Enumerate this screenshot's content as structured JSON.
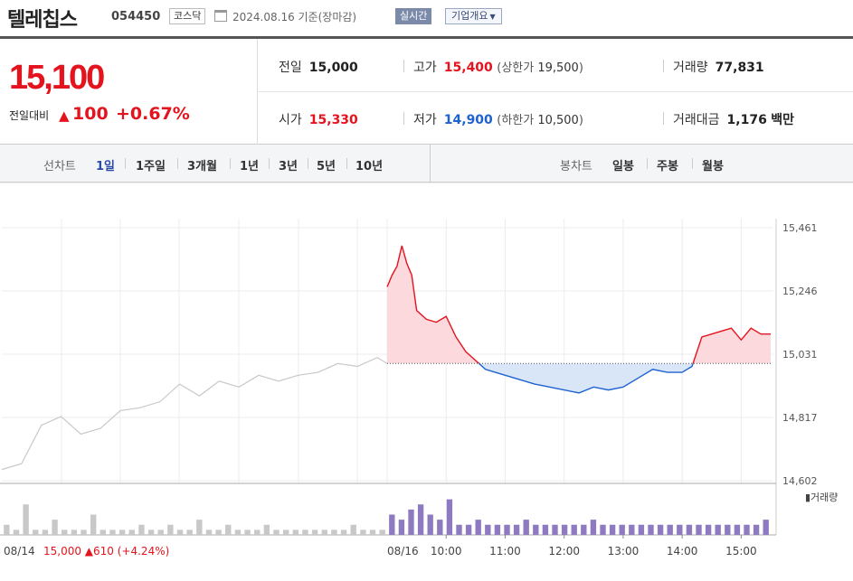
{
  "header": {
    "name": "텔레칩스",
    "code": "054450",
    "market": "코스닥",
    "date": "2024.08.16 기준(장마감)",
    "realtime": "실시간",
    "overview": "기업개요"
  },
  "price": {
    "current": "15,100",
    "change_label": "전일대비",
    "change_arrow": "▲",
    "change": "100",
    "change_pct": "+0.67%"
  },
  "stats": {
    "prev_label": "전일",
    "prev": "15,000",
    "high_label": "고가",
    "high": "15,400",
    "upper_label": "(상한가",
    "upper": "19,500",
    "upper_close": ")",
    "volume_label": "거래량",
    "volume": "77,831",
    "open_label": "시가",
    "open": "15,330",
    "low_label": "저가",
    "low": "14,900",
    "lower_label": "(하한가",
    "lower": "10,500",
    "lower_close": ")",
    "amount_label": "거래대금",
    "amount": "1,176",
    "amount_unit": "백만"
  },
  "period": {
    "line_label": "선차트",
    "line_items": [
      "1일",
      "1주일",
      "3개월",
      "1년",
      "3년",
      "5년",
      "10년"
    ],
    "candle_label": "봉차트",
    "candle_items": [
      "일봉",
      "주봉",
      "월봉"
    ]
  },
  "colors": {
    "up": "#e4141e",
    "down": "#1e62d0",
    "prev_day_line": "#c8c8c8",
    "volume": "#8e7ac0"
  },
  "chart_data": {
    "type": "line",
    "y_ticks": [
      "15,461",
      "15,246",
      "15,031",
      "14,817",
      "14,602"
    ],
    "ylim": [
      14602,
      15461
    ],
    "base_price": 15000,
    "x_tick_labels": [
      "08/14",
      "08/16",
      "10:00",
      "11:00",
      "12:00",
      "13:00",
      "14:00",
      "15:00"
    ],
    "prev_day_summary": {
      "date": "08/14",
      "close": "15,000",
      "arrow": "▲",
      "change": "610",
      "pct": "(+4.24%)"
    },
    "volume_legend": "거래량",
    "grid": true,
    "series": [
      {
        "name": "",
        "day": "08/14",
        "x": [
          "09:00",
          "09:20",
          "09:40",
          "10:00",
          "10:20",
          "10:40",
          "11:00",
          "11:20",
          "11:40",
          "12:00",
          "12:20",
          "12:40",
          "13:00",
          "13:20",
          "13:40",
          "14:00",
          "14:20",
          "14:40",
          "15:00",
          "15:20",
          "15:30"
        ],
        "values": [
          14640,
          14660,
          14790,
          14820,
          14760,
          14780,
          14840,
          14850,
          14870,
          14930,
          14890,
          14940,
          14920,
          14960,
          14940,
          14960,
          14970,
          15000,
          14990,
          15020,
          15000
        ]
      },
      {
        "name": "",
        "day": "08/16",
        "x": [
          "09:00",
          "09:05",
          "09:10",
          "09:15",
          "09:20",
          "09:25",
          "09:30",
          "09:40",
          "09:50",
          "10:00",
          "10:10",
          "10:20",
          "10:30",
          "10:40",
          "10:50",
          "11:00",
          "11:10",
          "11:20",
          "11:30",
          "11:45",
          "12:00",
          "12:15",
          "12:30",
          "12:45",
          "13:00",
          "13:15",
          "13:30",
          "13:45",
          "14:00",
          "14:10",
          "14:20",
          "14:30",
          "14:40",
          "14:50",
          "15:00",
          "15:10",
          "15:20",
          "15:30"
        ],
        "values": [
          15260,
          15300,
          15330,
          15400,
          15340,
          15300,
          15180,
          15150,
          15140,
          15160,
          15090,
          15040,
          15010,
          14980,
          14970,
          14960,
          14950,
          14940,
          14930,
          14920,
          14910,
          14900,
          14920,
          14910,
          14920,
          14950,
          14980,
          14970,
          14970,
          14990,
          15090,
          15100,
          15110,
          15120,
          15080,
          15120,
          15100,
          15100
        ]
      }
    ],
    "volume": {
      "08/14": [
        2,
        1,
        6,
        1,
        1,
        3,
        1,
        1,
        1,
        4,
        1,
        1,
        1,
        1,
        2,
        1,
        1,
        2,
        1,
        1,
        3,
        1,
        1,
        2,
        1,
        1,
        1,
        2,
        1,
        1,
        1,
        1,
        1,
        1,
        1,
        1,
        2,
        1,
        1,
        1
      ],
      "08/16": [
        4,
        3,
        5,
        6,
        4,
        3,
        7,
        2,
        2,
        3,
        2,
        2,
        2,
        2,
        3,
        2,
        2,
        2,
        2,
        2,
        2,
        3,
        2,
        2,
        2,
        2,
        2,
        2,
        2,
        2,
        2,
        2,
        2,
        2,
        2,
        2,
        2,
        2,
        2,
        3
      ]
    }
  }
}
